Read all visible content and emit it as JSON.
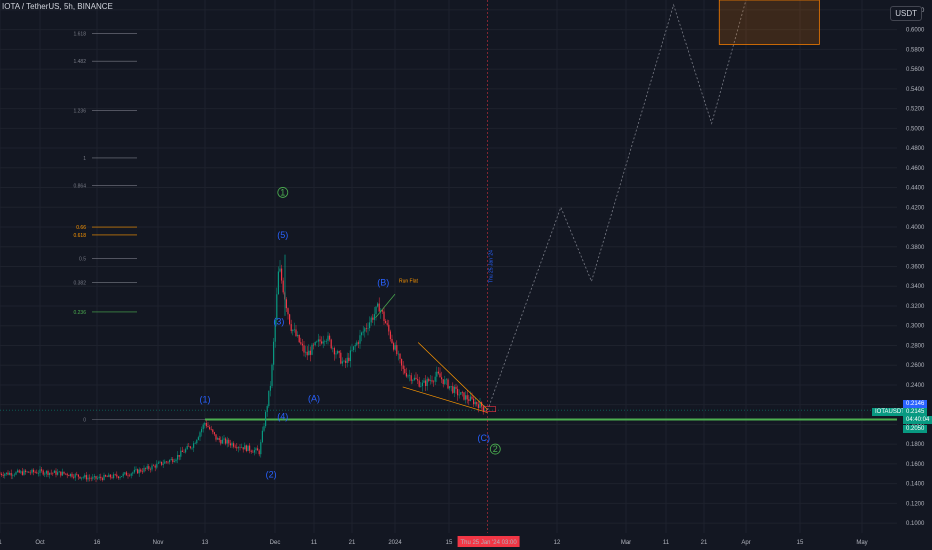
{
  "header": {
    "title": "IOTA / TetherUS, 5h, BINANCE",
    "unit": "USDT"
  },
  "symbol_badge": "IOTAUSDT",
  "price_badges": [
    {
      "value": "0.2146",
      "color": "#2962ff"
    },
    {
      "value": "0.2145",
      "color": "#089981"
    },
    {
      "value": "04:40:04",
      "color": "#089981"
    },
    {
      "value": "0.2050",
      "color": "#089981"
    }
  ],
  "current_date_label": "Thu 25 Jan '24   03:00",
  "colors": {
    "background": "#131722",
    "grid": "#1e222d",
    "up": "#089981",
    "down": "#f23645",
    "wave_blue": "#2962ff",
    "wave_green": "#4caf50",
    "support_line": "#4caf50",
    "fib_line": "#787b86",
    "fib_orange": "#ff9800",
    "projection": "#787b86",
    "target_box": "#f57c00"
  },
  "chart_data": {
    "type": "candlestick",
    "y_axis": {
      "min": 0.09,
      "max": 0.63,
      "ticks": [
        "0.1000",
        "0.1200",
        "0.1400",
        "0.1600",
        "0.1800",
        "0.2000",
        "0.2200",
        "0.2400",
        "0.2600",
        "0.2800",
        "0.3000",
        "0.3200",
        "0.3400",
        "0.3600",
        "0.3800",
        "0.4000",
        "0.4200",
        "0.4400",
        "0.4600",
        "0.4800",
        "0.5000",
        "0.5200",
        "0.5400",
        "0.5600",
        "0.5800",
        "0.6000",
        "0.6200"
      ],
      "scale": "linear"
    },
    "x_axis": {
      "labels": [
        "1",
        "Oct",
        "16",
        "Nov",
        "13",
        "Dec",
        "11",
        "21",
        "2024",
        "15",
        "12",
        "Mar",
        "11",
        "21",
        "Apr",
        "15",
        "May"
      ]
    },
    "price_path": [
      [
        "Sep 26",
        0.15
      ],
      [
        "Oct 1",
        0.152
      ],
      [
        "Oct 8",
        0.15
      ],
      [
        "Oct 15",
        0.145
      ],
      [
        "Oct 22",
        0.148
      ],
      [
        "Oct 29",
        0.155
      ],
      [
        "Nov 5",
        0.165
      ],
      [
        "Nov 10",
        0.18
      ],
      [
        "Nov 13",
        0.202
      ],
      [
        "Nov 16",
        0.185
      ],
      [
        "Nov 22",
        0.178
      ],
      [
        "Nov 27",
        0.172
      ],
      [
        "Nov 30",
        0.245
      ],
      [
        "Dec 2",
        0.36
      ],
      [
        "Dec 5",
        0.3
      ],
      [
        "Dec 9",
        0.27
      ],
      [
        "Dec 14",
        0.29
      ],
      [
        "Dec 19",
        0.26
      ],
      [
        "Dec 24",
        0.295
      ],
      [
        "Dec 28",
        0.32
      ],
      [
        "Jan 3",
        0.255
      ],
      [
        "Jan 8",
        0.24
      ],
      [
        "Jan 12",
        0.25
      ],
      [
        "Jan 17",
        0.232
      ],
      [
        "Jan 22",
        0.222
      ],
      [
        "Jan 25",
        0.2145
      ]
    ],
    "fib_levels": [
      {
        "level": "1.618",
        "price": 0.596,
        "color": "#787b86"
      },
      {
        "level": "1.482",
        "price": 0.568,
        "color": "#787b86"
      },
      {
        "level": "1.236",
        "price": 0.518,
        "color": "#787b86"
      },
      {
        "level": "1",
        "price": 0.47,
        "color": "#787b86"
      },
      {
        "level": "0.864",
        "price": 0.442,
        "color": "#787b86"
      },
      {
        "level": "0.66",
        "price": 0.4,
        "color": "#ff9800"
      },
      {
        "level": "0.618",
        "price": 0.392,
        "color": "#ff9800"
      },
      {
        "level": "0.5",
        "price": 0.368,
        "color": "#787b86"
      },
      {
        "level": "0.382",
        "price": 0.344,
        "color": "#787b86"
      },
      {
        "level": "0.236",
        "price": 0.314,
        "color": "#4caf50"
      },
      {
        "level": "0",
        "price": 0.205,
        "color": "#787b86"
      }
    ],
    "support_price": 0.205,
    "wave_labels": [
      {
        "text": "(1)",
        "date": "Nov 13",
        "price": 0.222,
        "color": "#2962ff"
      },
      {
        "text": "(2)",
        "date": "Nov 30",
        "price": 0.146,
        "color": "#2962ff"
      },
      {
        "text": "(3)",
        "date": "Dec 2",
        "price": 0.301,
        "color": "#2962ff"
      },
      {
        "text": "(4)",
        "date": "Dec 3",
        "price": 0.205,
        "color": "#2962ff"
      },
      {
        "text": "(5)",
        "date": "Dec 3",
        "price": 0.389,
        "color": "#2962ff"
      },
      {
        "text": "(A)",
        "date": "Dec 11",
        "price": 0.223,
        "color": "#2962ff"
      },
      {
        "text": "(B)",
        "date": "Dec 29",
        "price": 0.341,
        "color": "#2962ff"
      },
      {
        "text": "(C)",
        "date": "Jan 24",
        "price": 0.183,
        "color": "#2962ff"
      },
      {
        "text": "1",
        "date": "Dec 3",
        "price": 0.432,
        "color": "#4caf50"
      },
      {
        "text": "2",
        "date": "Jan 27",
        "price": 0.172,
        "color": "#4caf50"
      }
    ],
    "pattern_label": {
      "text": "Run Flat",
      "date": "Jan 1",
      "price": 0.344,
      "color": "#ff9800"
    },
    "vertical_text": "Thu 25 Jan '24",
    "projection_path": [
      [
        "Jan 25",
        0.2145
      ],
      [
        "Feb 13",
        0.42
      ],
      [
        "Feb 21",
        0.345
      ],
      [
        "Mar 13",
        0.625
      ],
      [
        "Mar 23",
        0.505
      ],
      [
        "Apr 1",
        0.63
      ]
    ],
    "target_zone": {
      "price_low": 0.585,
      "price_high": 0.63,
      "date_from": "Mar 25",
      "date_to": "Apr 20"
    }
  }
}
